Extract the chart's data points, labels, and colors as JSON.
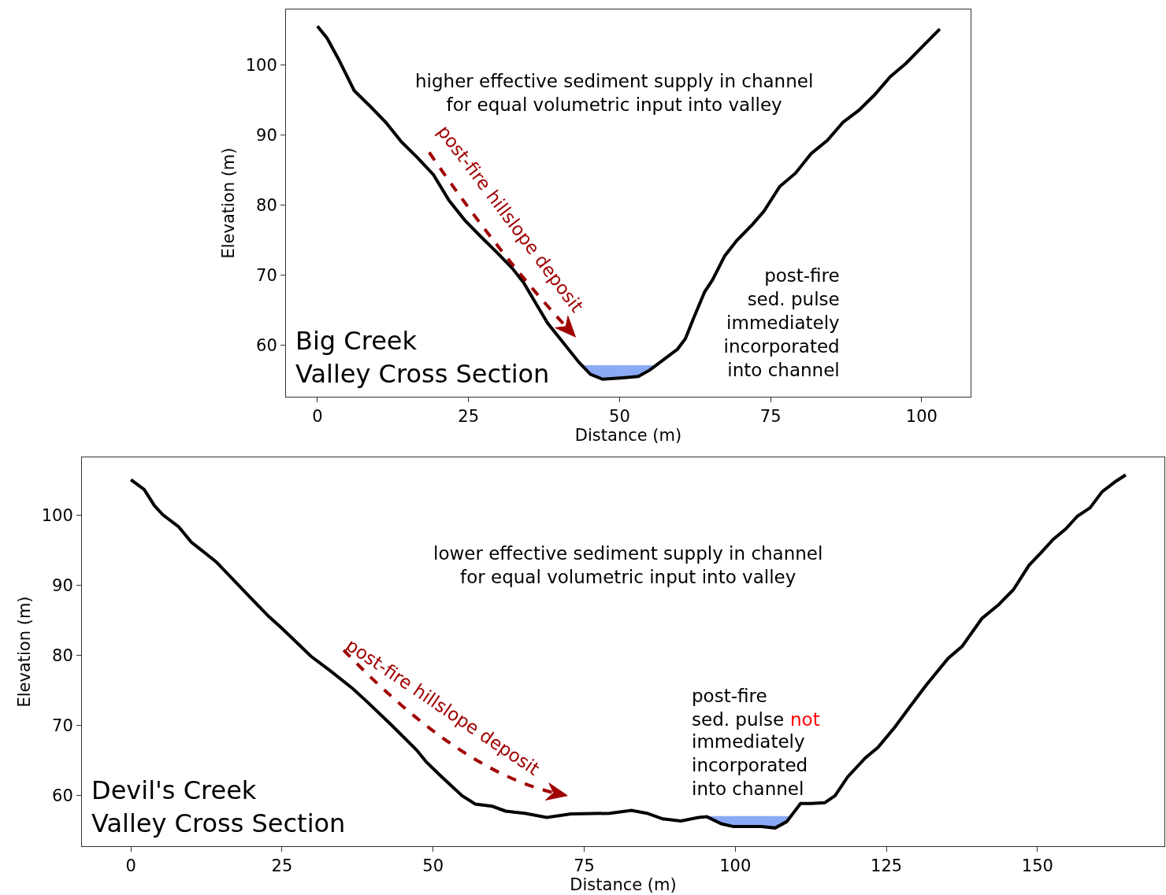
{
  "chart_data": [
    {
      "type": "line",
      "title": "Big Creek\nValley Cross Section",
      "xlabel": "Distance (m)",
      "ylabel": "Elevation (m)",
      "xlim": [
        -5.2,
        108.1
      ],
      "ylim": [
        52.6,
        107.9
      ],
      "xticks": [
        0,
        25,
        50,
        75,
        100
      ],
      "yticks": [
        60,
        70,
        80,
        90,
        100
      ],
      "series": [
        {
          "color": "#000000",
          "x": [
            0,
            1.6,
            3.5,
            6.1,
            8.7,
            11.3,
            13.9,
            16.6,
            19.2,
            21.8,
            24.4,
            27.0,
            29.6,
            32.2,
            34.2,
            36.1,
            38.1,
            40.7,
            43.3,
            45.2,
            47.2,
            50.5,
            53.1,
            55.0,
            57.6,
            59.6,
            60.9,
            62.2,
            64.1,
            65.4,
            67.4,
            69.4,
            72.0,
            73.9,
            76.5,
            79.1,
            81.7,
            84.4,
            87.0,
            89.6,
            92.2,
            94.8,
            97.4,
            100,
            103.0
          ],
          "values": [
            105.5,
            103.8,
            100.8,
            96.3,
            94.1,
            91.8,
            89.0,
            86.7,
            84.3,
            80.6,
            77.8,
            75.5,
            73.3,
            71.0,
            68.8,
            66.0,
            63.1,
            60.3,
            57.5,
            55.8,
            55.1,
            55.3,
            55.5,
            56.4,
            58.1,
            59.4,
            60.9,
            63.7,
            67.6,
            69.3,
            72.7,
            74.9,
            77.2,
            79.1,
            82.6,
            84.5,
            87.3,
            89.2,
            91.8,
            93.5,
            95.7,
            98.3,
            100.2,
            102.5,
            105.1
          ]
        },
        {
          "type": "area",
          "color": "#8aaaf5",
          "x": [
            43.8,
            45.2,
            47.2,
            50.5,
            53.1,
            55.0,
            56.3
          ],
          "values": [
            57.1,
            57.1,
            57.1,
            57.1,
            57.1,
            57.1,
            57.1
          ]
        }
      ],
      "annotations": [
        "higher effective sediment supply in channel\nfor equal volumetric input into valley",
        "post-fire hillslope deposit",
        "post-fire\nsed. pulse\nimmediately\nincorporated\n into channel"
      ]
    },
    {
      "type": "line",
      "title": "Devil's Creek\nValley Cross Section",
      "xlabel": "Distance (m)",
      "ylabel": "Elevation (m)",
      "xlim": [
        -8.1,
        171.0
      ],
      "ylim": [
        52.8,
        108.3
      ],
      "xticks": [
        0,
        25,
        50,
        75,
        100,
        125,
        150
      ],
      "yticks": [
        60,
        70,
        80,
        90,
        100
      ],
      "series": [
        {
          "color": "#000000",
          "x": [
            0,
            2.2,
            3.9,
            5.3,
            7.9,
            10.0,
            14.1,
            19.3,
            22.8,
            25.1,
            29.8,
            32.9,
            36.7,
            39.1,
            43.1,
            47.3,
            48.9,
            51.3,
            54.8,
            57.0,
            59.8,
            62.0,
            65.2,
            68.8,
            72.8,
            79.2,
            82.8,
            85.4,
            88.0,
            91.0,
            93.9,
            95.3,
            97.7,
            99.7,
            104.3,
            106.6,
            108.5,
            110.8,
            112.5,
            114.8,
            116.5,
            118.6,
            121.5,
            123.6,
            126.4,
            128.8,
            131.6,
            135.2,
            137.5,
            140.8,
            143.6,
            146.0,
            148.6,
            150.5,
            152.6,
            154.7,
            156.6,
            158.7,
            160.7,
            163.0,
            164.6
          ],
          "values": [
            105.1,
            103.7,
            101.4,
            100.1,
            98.4,
            96.2,
            93.4,
            88.7,
            85.6,
            83.8,
            79.9,
            77.9,
            75.3,
            73.4,
            70.1,
            66.5,
            64.8,
            62.8,
            60.0,
            58.8,
            58.5,
            57.8,
            57.5,
            56.9,
            57.4,
            57.5,
            57.9,
            57.5,
            56.7,
            56.4,
            56.9,
            57.0,
            56.0,
            55.6,
            55.6,
            55.4,
            56.3,
            58.9,
            58.9,
            59.0,
            60.0,
            62.7,
            65.4,
            66.9,
            69.8,
            72.6,
            75.8,
            79.6,
            81.3,
            85.3,
            87.3,
            89.4,
            92.9,
            94.6,
            96.6,
            98.1,
            99.9,
            101.1,
            103.4,
            104.9,
            105.8
          ]
        },
        {
          "type": "area",
          "color": "#8aaaf5",
          "x": [
            95.5,
            97.7,
            99.7,
            104.3,
            106.6,
            108.5,
            109.2
          ],
          "values": [
            57.1,
            57.1,
            57.1,
            57.1,
            57.1,
            57.1,
            57.1
          ]
        }
      ],
      "annotations": [
        "lower effective sediment supply in channel\nfor equal volumetric input into valley",
        "post-fire hillslope deposit",
        "post-fire\nsed. pulse",
        "not",
        "immediately\nincorporated\ninto channel"
      ]
    }
  ]
}
